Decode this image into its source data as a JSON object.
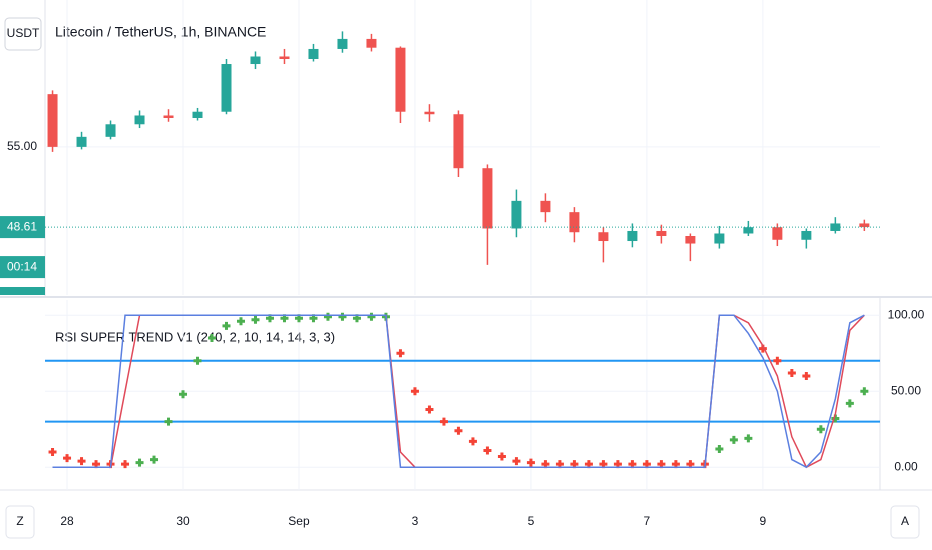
{
  "chart_data": [
    {
      "type": "candlestick",
      "title": "Litecoin / TetherUS, 1h, BINANCE",
      "currency": "USDT",
      "x": [
        -0.25,
        0.25,
        0.75,
        1.25,
        1.75,
        2.25,
        2.75,
        3.25,
        3.75,
        4.25,
        4.75,
        5.25,
        5.75,
        6.25,
        6.75,
        7.25,
        7.75,
        8.25,
        8.75,
        9.25,
        9.75,
        10.25,
        10.75,
        11.25,
        11.75,
        12.25,
        12.75,
        13.25,
        13.75
      ],
      "open": [
        59.2,
        55.0,
        55.8,
        56.8,
        57.5,
        57.3,
        57.8,
        61.6,
        62.2,
        62.0,
        62.8,
        63.6,
        62.9,
        57.8,
        57.6,
        53.3,
        48.5,
        50.7,
        49.8,
        48.2,
        47.5,
        48.3,
        47.9,
        47.3,
        48.1,
        48.6,
        47.6,
        48.3,
        48.9
      ],
      "high": [
        59.5,
        56.2,
        57.1,
        57.9,
        58.0,
        58.1,
        62.0,
        62.6,
        62.8,
        63.2,
        64.2,
        64.0,
        63.0,
        58.4,
        57.9,
        53.6,
        51.6,
        51.3,
        50.2,
        48.6,
        48.9,
        48.8,
        48.1,
        48.7,
        49.1,
        48.9,
        48.5,
        49.4,
        49.2
      ],
      "low": [
        54.6,
        54.8,
        55.6,
        56.5,
        57.0,
        57.1,
        57.6,
        61.2,
        61.6,
        61.8,
        62.5,
        62.6,
        56.9,
        57.0,
        52.6,
        45.6,
        47.8,
        49.0,
        47.4,
        45.8,
        47.0,
        47.3,
        45.9,
        46.9,
        47.9,
        47.1,
        46.9,
        48.1,
        48.3
      ],
      "close": [
        55.0,
        55.8,
        56.8,
        57.5,
        57.3,
        57.8,
        61.6,
        62.2,
        62.0,
        62.8,
        63.6,
        62.9,
        57.8,
        57.6,
        53.3,
        48.5,
        50.7,
        49.8,
        48.2,
        47.5,
        48.3,
        47.9,
        47.3,
        48.1,
        48.6,
        47.6,
        48.3,
        48.9,
        48.61
      ],
      "up_color": "#26a69a",
      "down_color": "#ef5350",
      "xlim": [
        -0.38,
        14.02
      ],
      "ylim": [
        43.2,
        66.7
      ],
      "yticks": [
        {
          "value": 55,
          "label": "55.00"
        }
      ],
      "xticks": [
        {
          "value": 0,
          "label": "28"
        },
        {
          "value": 2,
          "label": "30"
        },
        {
          "value": 4,
          "label": "Sep"
        },
        {
          "value": 6,
          "label": "3"
        },
        {
          "value": 8,
          "label": "5"
        },
        {
          "value": 10,
          "label": "7"
        },
        {
          "value": 12,
          "label": "9"
        }
      ],
      "last_price": 48.61,
      "countdown": "00:14",
      "grid": true
    },
    {
      "type": "indicator",
      "title": "RSI SUPER TREND V1 (240, 2, 10, 14, 14, 3, 3)",
      "x": [
        -0.25,
        0,
        0.25,
        0.5,
        0.75,
        1,
        1.25,
        1.5,
        1.75,
        2,
        2.25,
        2.5,
        2.75,
        3,
        3.25,
        3.5,
        3.75,
        4,
        4.25,
        4.5,
        4.75,
        5,
        5.25,
        5.5,
        5.75,
        6,
        6.25,
        6.5,
        6.75,
        7,
        7.25,
        7.5,
        7.75,
        8,
        8.25,
        8.5,
        8.75,
        9,
        9.25,
        9.5,
        9.75,
        10,
        10.25,
        10.5,
        10.75,
        11,
        11.25,
        11.5,
        11.75,
        12,
        12.25,
        12.5,
        12.75,
        13,
        13.25,
        13.5,
        13.75
      ],
      "series": [
        {
          "style": "cross",
          "color": "#4caf50",
          "values": [
            null,
            null,
            null,
            null,
            null,
            null,
            3,
            5,
            30,
            48,
            70,
            85,
            93,
            96,
            97,
            98,
            98,
            98,
            98,
            99,
            99,
            98,
            99,
            99,
            null,
            null,
            null,
            null,
            null,
            null,
            null,
            null,
            null,
            null,
            null,
            null,
            null,
            null,
            null,
            null,
            null,
            null,
            null,
            null,
            null,
            null,
            12,
            18,
            19,
            null,
            null,
            null,
            null,
            25,
            32,
            42,
            50
          ]
        },
        {
          "style": "cross",
          "color": "#f44336",
          "values": [
            10,
            6,
            4,
            2,
            2,
            2,
            null,
            null,
            null,
            null,
            null,
            null,
            null,
            null,
            null,
            null,
            null,
            null,
            null,
            null,
            null,
            null,
            null,
            null,
            75,
            50,
            38,
            30,
            24,
            17,
            11,
            7,
            4,
            3,
            2,
            2,
            2,
            2,
            2,
            2,
            2,
            2,
            2,
            2,
            2,
            2,
            null,
            null,
            null,
            78,
            70,
            62,
            60,
            null,
            null,
            null,
            null
          ]
        },
        {
          "style": "line",
          "color": "#e04a5a",
          "values": [
            0,
            0,
            0,
            0,
            0,
            50,
            100,
            100,
            100,
            100,
            100,
            100,
            100,
            100,
            100,
            100,
            100,
            100,
            100,
            100,
            100,
            100,
            100,
            100,
            10,
            0,
            0,
            0,
            0,
            0,
            0,
            0,
            0,
            0,
            0,
            0,
            0,
            0,
            0,
            0,
            0,
            0,
            0,
            0,
            0,
            0,
            100,
            100,
            95,
            80,
            60,
            20,
            0,
            5,
            35,
            90,
            100
          ]
        },
        {
          "style": "line",
          "color": "#5b7fe0",
          "values": [
            0,
            0,
            0,
            0,
            0,
            100,
            100,
            100,
            100,
            100,
            100,
            100,
            100,
            100,
            100,
            100,
            100,
            100,
            100,
            100,
            100,
            100,
            100,
            100,
            0,
            0,
            0,
            0,
            0,
            0,
            0,
            0,
            0,
            0,
            0,
            0,
            0,
            0,
            0,
            0,
            0,
            0,
            0,
            0,
            0,
            0,
            100,
            100,
            88,
            72,
            50,
            5,
            0,
            10,
            45,
            95,
            100
          ]
        }
      ],
      "levels": [
        70,
        30
      ],
      "level_color": "#2196f3",
      "xlim": [
        -0.38,
        14.02
      ],
      "ylim": [
        -15,
        110
      ],
      "yticks": [
        {
          "value": 100,
          "label": "100.00"
        },
        {
          "value": 50,
          "label": "50.00"
        },
        {
          "value": 0,
          "label": "0.00"
        }
      ],
      "grid": true
    }
  ]
}
